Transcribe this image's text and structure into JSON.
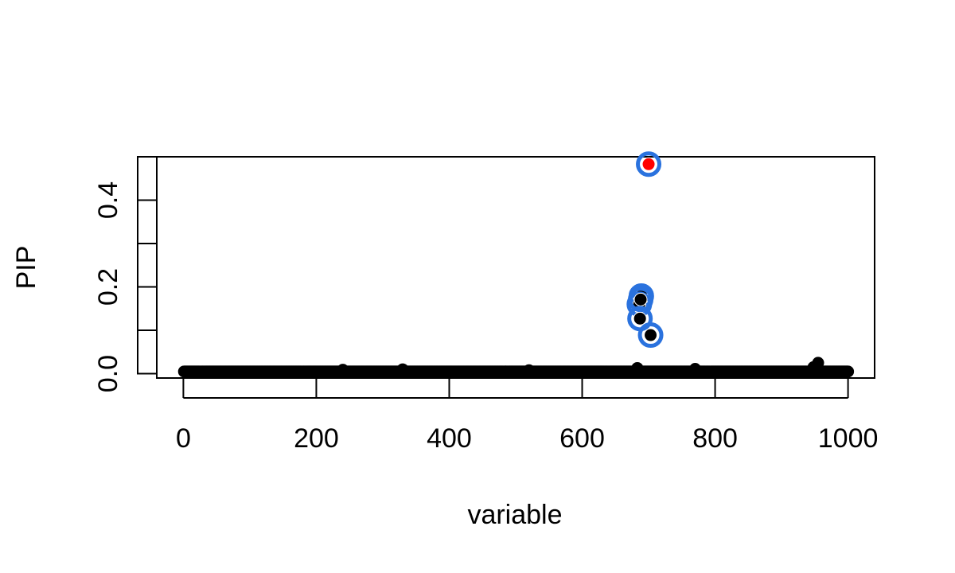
{
  "chart_data": {
    "type": "scatter",
    "title": "",
    "xlabel": "variable",
    "ylabel": "PIP",
    "xlim": [
      -40,
      1040
    ],
    "ylim": [
      -0.01,
      0.5
    ],
    "xticks": [
      0,
      200,
      400,
      600,
      800,
      1000
    ],
    "xtick_labels": [
      "0",
      "200",
      "400",
      "600",
      "800",
      "1000"
    ],
    "yticks": [
      0.0,
      0.1,
      0.2,
      0.3,
      0.4,
      0.5
    ],
    "ytick_labels": [
      "0.0",
      "",
      "0.2",
      "",
      "0.4",
      ""
    ],
    "grid": false,
    "n_background_points": 1000,
    "background_value": 0.005,
    "background_color": "#000000",
    "bumps": [
      {
        "x": 330,
        "y": 0.01
      },
      {
        "x": 683,
        "y": 0.013
      },
      {
        "x": 770,
        "y": 0.011
      },
      {
        "x": 955,
        "y": 0.025
      },
      {
        "x": 948,
        "y": 0.015
      },
      {
        "x": 240,
        "y": 0.009
      },
      {
        "x": 520,
        "y": 0.008
      }
    ],
    "highlighted_points": [
      {
        "x": 700,
        "y": 0.483,
        "fill": "#ff0000"
      },
      {
        "x": 689,
        "y": 0.179,
        "fill": "#000000"
      },
      {
        "x": 686,
        "y": 0.16,
        "fill": "#000000"
      },
      {
        "x": 688,
        "y": 0.171,
        "fill": "#000000"
      },
      {
        "x": 687,
        "y": 0.127,
        "fill": "#000000"
      },
      {
        "x": 703,
        "y": 0.089,
        "fill": "#000000"
      }
    ],
    "ring_color": "#2a72de"
  }
}
